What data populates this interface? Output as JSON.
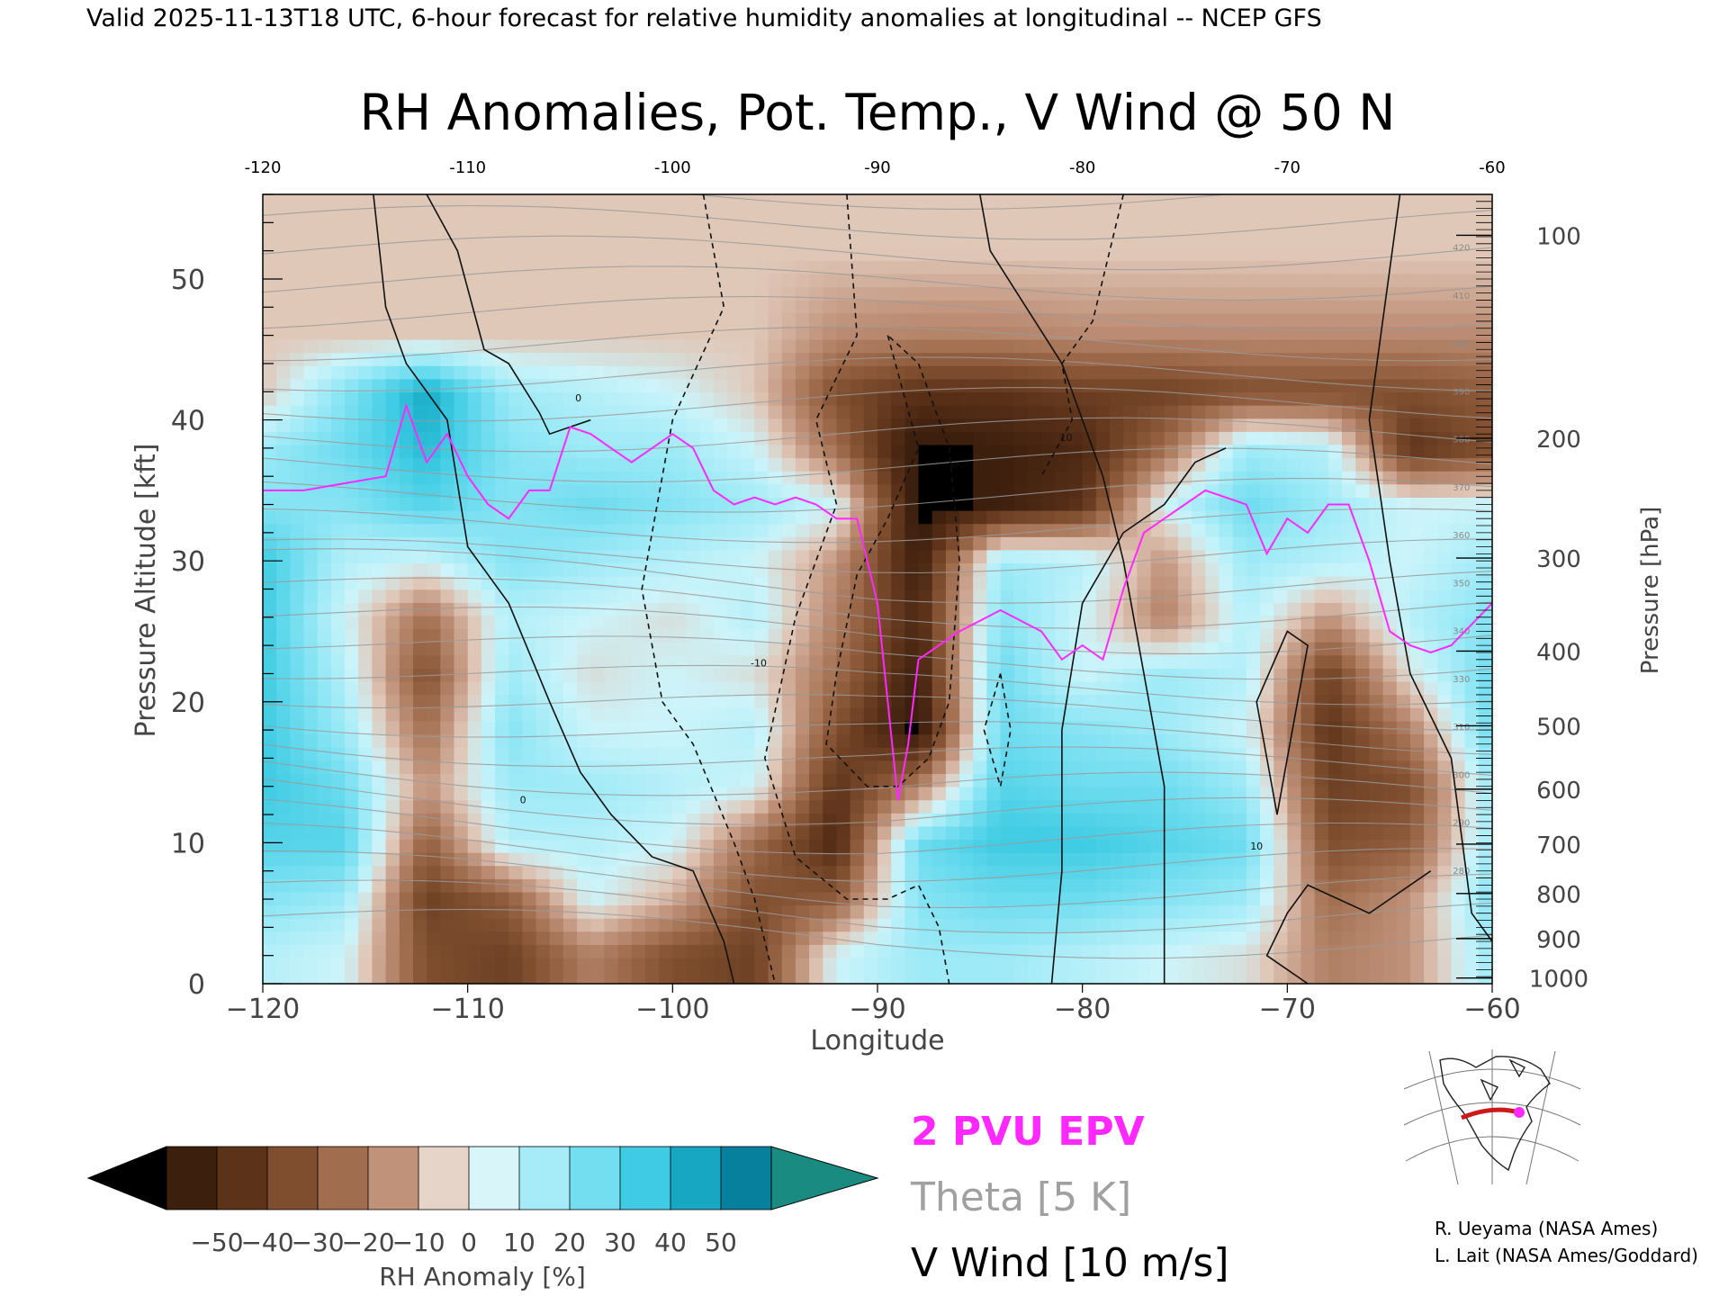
{
  "header": {
    "valid_line": "Valid 2025-11-13T18 UTC, 6-hour forecast for relative humidity anomalies at longitudinal -- NCEP GFS"
  },
  "chart_data": {
    "type": "heatmap",
    "title": "RH Anomalies, Pot. Temp., V Wind @ 50 N",
    "xlabel": "Longitude",
    "ylabel_left": "Pressure Altitude [kft]",
    "ylabel_right": "Pressure [hPa]",
    "xlim": [
      -120,
      -60
    ],
    "ylim": [
      0,
      56
    ],
    "x_ticks": [
      -120,
      -110,
      -100,
      -90,
      -80,
      -70,
      -60
    ],
    "x_tick_labels": [
      "−120",
      "−110",
      "−100",
      "−90",
      "−80",
      "−70",
      "−60"
    ],
    "top_tick_labels": [
      "-120",
      "-110",
      "-100",
      "-90",
      "-80",
      "-70",
      "-60"
    ],
    "y_ticks_left": [
      0,
      10,
      20,
      30,
      40,
      50
    ],
    "pressure_ticks": [
      {
        "hpa": 100,
        "kft": 53.1,
        "label": "100"
      },
      {
        "hpa": 200,
        "kft": 38.7,
        "label": "200"
      },
      {
        "hpa": 300,
        "kft": 30.2,
        "label": "300"
      },
      {
        "hpa": 400,
        "kft": 23.6,
        "label": "400"
      },
      {
        "hpa": 500,
        "kft": 18.3,
        "label": "500"
      },
      {
        "hpa": 600,
        "kft": 13.8,
        "label": "600"
      },
      {
        "hpa": 700,
        "kft": 9.9,
        "label": "700"
      },
      {
        "hpa": 800,
        "kft": 6.4,
        "label": "800"
      },
      {
        "hpa": 900,
        "kft": 3.2,
        "label": "900"
      },
      {
        "hpa": 1000,
        "kft": 0.4,
        "label": "1000"
      }
    ],
    "rh_anomaly_grid": {
      "longitudes": [
        -120,
        -116,
        -112,
        -108,
        -104,
        -100,
        -96,
        -92,
        -88,
        -84,
        -80,
        -76,
        -72,
        -68,
        -64,
        -60
      ],
      "altitudes_kft": [
        52,
        46,
        42,
        38,
        34,
        30,
        26,
        22,
        18,
        14,
        10,
        6,
        2
      ],
      "values": [
        [
          0,
          0,
          0,
          0,
          0,
          0,
          0,
          0,
          0,
          0,
          0,
          0,
          0,
          0,
          0,
          0
        ],
        [
          0,
          0,
          0,
          0,
          0,
          0,
          0,
          -12,
          -14,
          -14,
          -12,
          -12,
          -12,
          -12,
          -12,
          -12
        ],
        [
          0,
          25,
          50,
          20,
          15,
          10,
          0,
          -30,
          -40,
          -40,
          -35,
          -35,
          -30,
          -30,
          -30,
          -25
        ],
        [
          20,
          30,
          45,
          25,
          20,
          20,
          10,
          -20,
          -55,
          -50,
          -45,
          -20,
          20,
          15,
          -40,
          -30
        ],
        [
          25,
          25,
          35,
          25,
          30,
          25,
          20,
          10,
          -55,
          -50,
          -40,
          10,
          30,
          20,
          10,
          10
        ],
        [
          40,
          15,
          10,
          25,
          20,
          15,
          10,
          -10,
          -50,
          20,
          15,
          -10,
          20,
          15,
          10,
          20
        ],
        [
          40,
          10,
          -20,
          15,
          10,
          5,
          15,
          -15,
          -45,
          25,
          10,
          -15,
          15,
          -10,
          15,
          25
        ],
        [
          40,
          15,
          -30,
          20,
          5,
          10,
          5,
          -20,
          -50,
          30,
          10,
          20,
          15,
          -35,
          5,
          30
        ],
        [
          40,
          20,
          -20,
          25,
          10,
          10,
          15,
          -30,
          -55,
          30,
          25,
          20,
          10,
          -40,
          -15,
          30
        ],
        [
          40,
          30,
          -10,
          20,
          20,
          15,
          10,
          -40,
          -15,
          35,
          30,
          30,
          20,
          -35,
          -30,
          20
        ],
        [
          35,
          35,
          -25,
          15,
          15,
          10,
          -20,
          -45,
          30,
          40,
          40,
          35,
          30,
          -30,
          -25,
          20
        ],
        [
          25,
          20,
          -35,
          -25,
          10,
          -5,
          -30,
          -25,
          25,
          30,
          30,
          25,
          20,
          -20,
          -10,
          25
        ],
        [
          15,
          10,
          -30,
          -35,
          -15,
          -30,
          -35,
          10,
          20,
          20,
          15,
          10,
          5,
          -15,
          -10,
          20
        ]
      ]
    },
    "rh_colorbar": {
      "label": "RH Anomaly [%]",
      "tick_labels": [
        "−50",
        "−40",
        "−30",
        "−20",
        "−10",
        "0",
        "10",
        "20",
        "30",
        "40",
        "50"
      ],
      "values": [
        -50,
        -40,
        -30,
        -20,
        -10,
        0,
        10,
        20,
        30,
        40,
        50
      ],
      "colors": [
        "#3d1f0e",
        "#5c3219",
        "#7f4e2f",
        "#a06d4e",
        "#c0927a",
        "#e0c8b9",
        "#ccf4fa",
        "#9eeaf7",
        "#6ddcef",
        "#3dcbe3",
        "#13a9c3"
      ],
      "under_color": "#000000",
      "over_color": "#1a8b80"
    },
    "series": [
      {
        "name": "2 PVU EPV",
        "color": "#ff29ff",
        "x": [
          -120,
          -118,
          -116,
          -114,
          -113,
          -112,
          -111,
          -110,
          -109,
          -108,
          -107,
          -106,
          -105,
          -104,
          -103,
          -102,
          -101,
          -100,
          -99,
          -98,
          -97,
          -96,
          -95,
          -94,
          -93,
          -92,
          -91,
          -90,
          -89.5,
          -89,
          -88.5,
          -88,
          -87,
          -86,
          -84,
          -82,
          -81,
          -80,
          -79,
          -78,
          -77,
          -76,
          -75,
          -74,
          -73,
          -72,
          -71,
          -70,
          -69,
          -68,
          -67,
          -66,
          -65,
          -64,
          -63,
          -62,
          -60
        ],
        "y": [
          35,
          35,
          35.5,
          36,
          41,
          37,
          39,
          36,
          34,
          33,
          35,
          35,
          39.5,
          39,
          38,
          37,
          38,
          39,
          38,
          35,
          34,
          34.5,
          34,
          34.5,
          34,
          33,
          33,
          27,
          20,
          13,
          17,
          23,
          24,
          25,
          26.5,
          25,
          23,
          24,
          23,
          28,
          32,
          33,
          34,
          35,
          34.5,
          34,
          30.5,
          33,
          32,
          34,
          34,
          30,
          25,
          24,
          23.5,
          24,
          27
        ]
      },
      {
        "name": "Theta [5 K]",
        "color": "#a0a0a0",
        "levels": [
          280,
          285,
          290,
          295,
          300,
          305,
          310,
          315,
          320,
          325,
          330,
          335,
          340,
          345,
          350,
          355,
          360,
          365,
          370,
          375,
          380,
          385,
          390,
          395,
          400,
          405,
          410,
          415,
          420
        ],
        "contour_labels": [
          "420",
          "410",
          "400",
          "390",
          "380",
          "370",
          "360",
          "350",
          "340",
          "330",
          "310",
          "300",
          "290",
          "280"
        ]
      },
      {
        "name": "V Wind [10 m/s]",
        "color": "#000000",
        "interval_ms": 10,
        "contour_labels": [
          "0",
          "10",
          "-10"
        ]
      }
    ]
  },
  "legend": {
    "pv_label": "2 PVU EPV",
    "theta_label": "Theta [5 K]",
    "wind_label": "V Wind [10 m/s]"
  },
  "credits": {
    "line1": "R. Ueyama (NASA Ames)",
    "line2": "L. Lait (NASA Ames/Goddard)"
  },
  "inset_map": {
    "path_color": "#cc1a1a",
    "marker_color": "#ff29ff"
  }
}
